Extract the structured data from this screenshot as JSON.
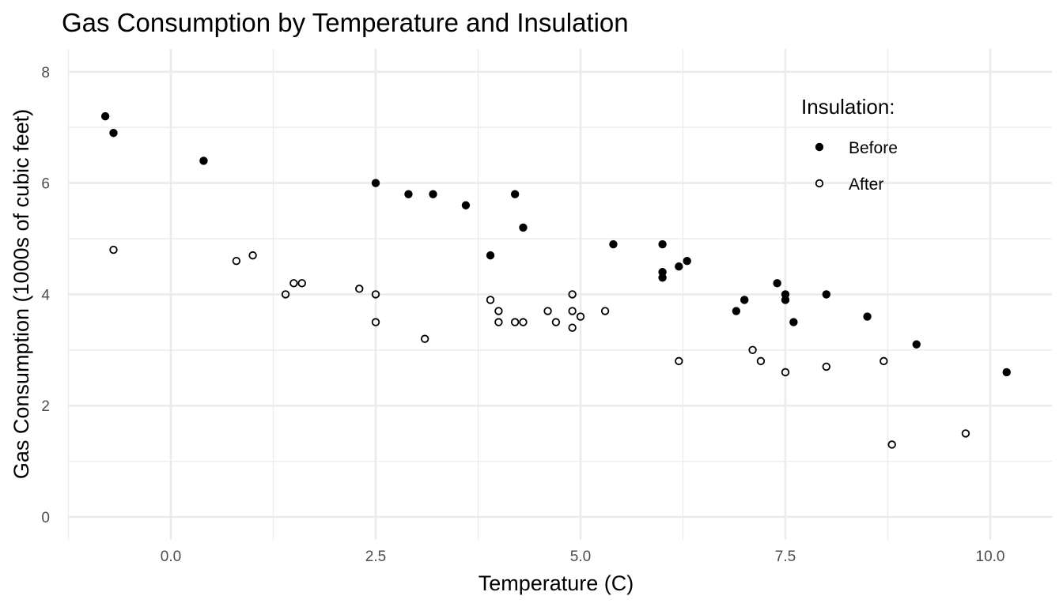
{
  "chart_data": {
    "type": "scatter",
    "title": "Gas Consumption by Temperature and Insulation",
    "xlabel": "Temperature (C)",
    "ylabel": "Gas Consumption (1000s of cubic feet)",
    "xlim": [
      -1.35,
      10.75
    ],
    "ylim": [
      -0.42,
      8.4
    ],
    "x_ticks": [
      0.0,
      2.5,
      5.0,
      7.5,
      10.0
    ],
    "x_tick_labels": [
      "0.0",
      "2.5",
      "5.0",
      "7.5",
      "10.0"
    ],
    "y_ticks": [
      0,
      2,
      4,
      6,
      8
    ],
    "y_tick_labels": [
      "0",
      "2",
      "4",
      "6",
      "8"
    ],
    "x_minor_ticks": [
      -1.25,
      1.25,
      3.75,
      6.25,
      8.75
    ],
    "y_minor_ticks": [
      1,
      3,
      5,
      7
    ],
    "grid": true,
    "legend": {
      "title": "Insulation:",
      "placement": "top-right",
      "entries": [
        {
          "label": "Before",
          "marker": "filled-circle"
        },
        {
          "label": "After",
          "marker": "open-circle"
        }
      ]
    },
    "series": [
      {
        "name": "Before",
        "marker": "filled-circle",
        "color": "#000000",
        "points": [
          [
            -0.8,
            7.2
          ],
          [
            -0.7,
            6.9
          ],
          [
            0.4,
            6.4
          ],
          [
            2.5,
            6.0
          ],
          [
            2.9,
            5.8
          ],
          [
            3.2,
            5.8
          ],
          [
            3.6,
            5.6
          ],
          [
            3.9,
            4.7
          ],
          [
            4.2,
            5.8
          ],
          [
            4.3,
            5.2
          ],
          [
            5.4,
            4.9
          ],
          [
            6.0,
            4.9
          ],
          [
            6.0,
            4.3
          ],
          [
            6.0,
            4.4
          ],
          [
            6.2,
            4.5
          ],
          [
            6.3,
            4.6
          ],
          [
            6.9,
            3.7
          ],
          [
            7.0,
            3.9
          ],
          [
            7.4,
            4.2
          ],
          [
            7.5,
            4.0
          ],
          [
            7.5,
            3.9
          ],
          [
            7.6,
            3.5
          ],
          [
            8.0,
            4.0
          ],
          [
            8.5,
            3.6
          ],
          [
            9.1,
            3.1
          ],
          [
            10.2,
            2.6
          ]
        ]
      },
      {
        "name": "After",
        "marker": "open-circle",
        "color": "#000000",
        "points": [
          [
            -0.7,
            4.8
          ],
          [
            0.8,
            4.6
          ],
          [
            1.0,
            4.7
          ],
          [
            1.4,
            4.0
          ],
          [
            1.5,
            4.2
          ],
          [
            1.6,
            4.2
          ],
          [
            2.3,
            4.1
          ],
          [
            2.5,
            4.0
          ],
          [
            2.5,
            3.5
          ],
          [
            3.1,
            3.2
          ],
          [
            3.9,
            3.9
          ],
          [
            4.0,
            3.5
          ],
          [
            4.0,
            3.7
          ],
          [
            4.2,
            3.5
          ],
          [
            4.3,
            3.5
          ],
          [
            4.6,
            3.7
          ],
          [
            4.7,
            3.5
          ],
          [
            4.9,
            3.4
          ],
          [
            4.9,
            3.7
          ],
          [
            4.9,
            4.0
          ],
          [
            5.0,
            3.6
          ],
          [
            5.3,
            3.7
          ],
          [
            6.2,
            2.8
          ],
          [
            7.1,
            3.0
          ],
          [
            7.2,
            2.8
          ],
          [
            7.5,
            2.6
          ],
          [
            8.0,
            2.7
          ],
          [
            8.7,
            2.8
          ],
          [
            8.8,
            1.3
          ],
          [
            9.7,
            1.5
          ]
        ]
      }
    ]
  }
}
